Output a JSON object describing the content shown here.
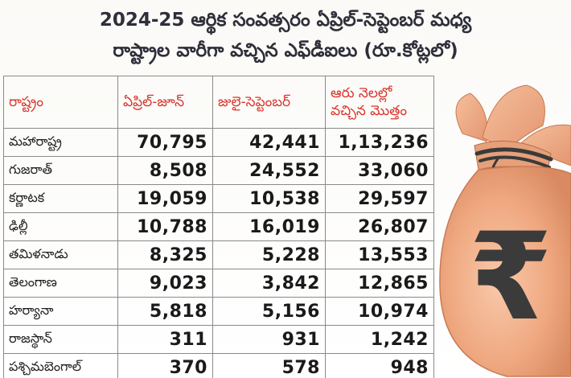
{
  "headline": {
    "line1": "2024-25 ఆర్థిక సంవత్సరం ఏప్రిల్-సెప్టెంబర్ మధ్య",
    "line2": "రాష్ట్రాల వారీగా వచ్చిన ఎఫ్‌డీఐలు  (రూ.కోట్లలో)"
  },
  "table": {
    "columns": [
      "రాష్ట్రం",
      "ఏప్రిల్-జూన్",
      "జులై-సెప్టెంబర్",
      "ఆరు నెలల్లో వచ్చిన మొత్తం"
    ],
    "rows": [
      {
        "state": "మహారాష్ట్ర",
        "apr_jun": "70,795",
        "jul_sep": "42,441",
        "total": "1,13,236"
      },
      {
        "state": "గుజరాత్",
        "apr_jun": "8,508",
        "jul_sep": "24,552",
        "total": "33,060"
      },
      {
        "state": "కర్ణాటక",
        "apr_jun": "19,059",
        "jul_sep": "10,538",
        "total": "29,597"
      },
      {
        "state": "ఢిల్లీ",
        "apr_jun": "10,788",
        "jul_sep": "16,019",
        "total": "26,807"
      },
      {
        "state": "తమిళనాడు",
        "apr_jun": "8,325",
        "jul_sep": "5,228",
        "total": "13,553"
      },
      {
        "state": "తెలంగాణ",
        "apr_jun": "9,023",
        "jul_sep": "3,842",
        "total": "12,865"
      },
      {
        "state": "హర్యానా",
        "apr_jun": "5,818",
        "jul_sep": "5,156",
        "total": "10,974"
      },
      {
        "state": "రాజస్థాన్",
        "apr_jun": "311",
        "jul_sep": "931",
        "total": "1,242"
      },
      {
        "state": "పశ్చిమబెంగాల్",
        "apr_jun": "370",
        "jul_sep": "578",
        "total": "948"
      }
    ]
  },
  "illustration": {
    "icon": "money-bag-rupee",
    "symbol": "₹",
    "bag_color": "#f1b08c",
    "header_color": "#d9342b"
  }
}
